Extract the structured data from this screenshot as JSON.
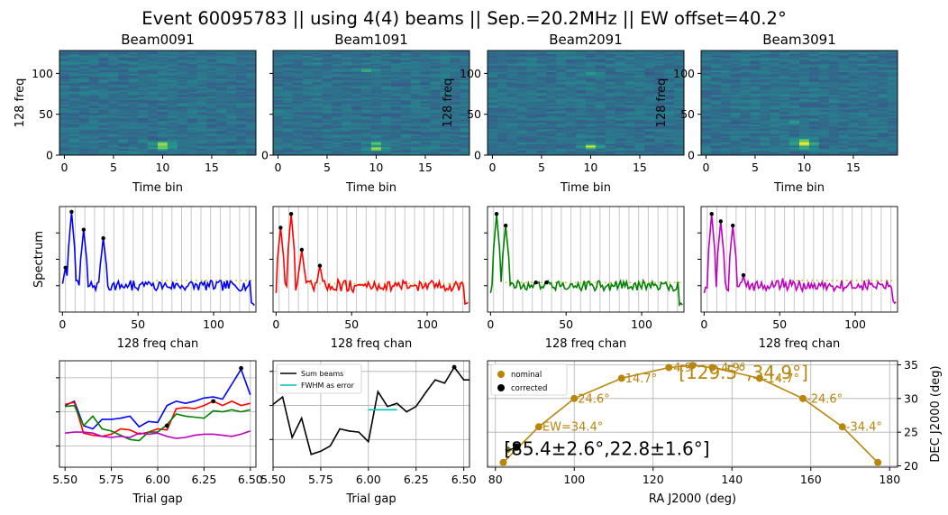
{
  "suptitle": "Event 60095783 || using 4(4) beams || Sep.=20.2MHz || EW offset=40.2°",
  "colors": {
    "beam0": "#0000ff",
    "beam1": "#ff0000",
    "beam2": "#008000",
    "beam3": "#bf00bf",
    "threshold": "#bfbf00",
    "track": "#b8860b",
    "corrected": "#000000",
    "olive": "#808000",
    "fwhm": "#00bfbf"
  },
  "chart_data": [
    {
      "type": "heatmap",
      "panels": [
        {
          "title": "Beam0091",
          "hotspots": [
            {
              "t": 10,
              "f": 14,
              "s": 1.0
            },
            {
              "t": 10,
              "f": 9,
              "s": 0.7
            }
          ]
        },
        {
          "title": "Beam1091",
          "hotspots": [
            {
              "t": 10,
              "f": 14,
              "s": 0.6
            },
            {
              "t": 10,
              "f": 8,
              "s": 0.9
            },
            {
              "t": 9,
              "f": 104,
              "s": 0.35
            }
          ]
        },
        {
          "title": "Beam2091",
          "hotspots": [
            {
              "t": 10,
              "f": 11,
              "s": 0.9
            },
            {
              "t": 10,
              "f": 100,
              "s": 0.3
            }
          ]
        },
        {
          "title": "Beam3091",
          "hotspots": [
            {
              "t": 10,
              "f": 14,
              "s": 1.0
            },
            {
              "t": 10,
              "f": 18,
              "s": 0.7
            },
            {
              "t": 10,
              "f": 9,
              "s": 0.5
            },
            {
              "t": 9,
              "f": 40,
              "s": 0.4
            }
          ]
        }
      ],
      "xlabel": "Time bin",
      "ylabel": "128 freq",
      "xlim": [
        -0.5,
        19.5
      ],
      "ylim": [
        0,
        128
      ],
      "xticks": [
        "0",
        "5",
        "10",
        "15"
      ],
      "yticks": [
        "0",
        "50",
        "100"
      ]
    },
    {
      "type": "line",
      "xlabel": "128 freq chan",
      "ylabel": "Spectrum",
      "xlim": [
        -2,
        128
      ],
      "xticks": [
        "0",
        "50",
        "100"
      ],
      "panels": [
        {
          "name": "beam0",
          "threshold": 0.3,
          "peaks": [
            [
              2,
              0.42
            ],
            [
              6,
              0.95
            ],
            [
              14,
              0.78
            ],
            [
              27,
              0.7
            ]
          ]
        },
        {
          "name": "beam1",
          "threshold": 0.27,
          "peaks": [
            [
              3,
              0.8
            ],
            [
              10,
              0.93
            ],
            [
              17,
              0.59
            ],
            [
              29,
              0.44
            ]
          ]
        },
        {
          "name": "beam2",
          "threshold": 0.28,
          "peaks": [
            [
              4,
              0.93
            ],
            [
              10,
              0.82
            ],
            [
              30,
              0.28
            ],
            [
              37,
              0.28
            ]
          ]
        },
        {
          "name": "beam3",
          "threshold": 0.3,
          "peaks": [
            [
              5,
              0.93
            ],
            [
              11,
              0.86
            ],
            [
              19,
              0.82
            ],
            [
              26,
              0.35
            ]
          ]
        }
      ]
    },
    {
      "type": "line",
      "xlabel": "Trial gap",
      "xlim": [
        5.47,
        6.53
      ],
      "xticks": [
        "5.50",
        "5.75",
        "6.00",
        "6.25",
        "6.50"
      ],
      "x": [
        5.5,
        5.55,
        5.6,
        5.65,
        5.7,
        5.75,
        5.8,
        5.85,
        5.9,
        5.95,
        6.0,
        6.05,
        6.1,
        6.15,
        6.2,
        6.25,
        6.3,
        6.35,
        6.4,
        6.45,
        6.5
      ],
      "series": [
        {
          "values": [
            0.58,
            0.62,
            0.39,
            0.36,
            0.45,
            0.45,
            0.46,
            0.48,
            0.38,
            0.43,
            0.42,
            0.58,
            0.62,
            0.6,
            0.62,
            0.65,
            0.66,
            0.64,
            0.78,
            0.92,
            0.68
          ]
        },
        {
          "values": [
            0.59,
            0.61,
            0.32,
            0.3,
            0.29,
            0.31,
            0.36,
            0.35,
            0.31,
            0.33,
            0.36,
            0.35,
            0.55,
            0.56,
            0.55,
            0.58,
            0.62,
            0.58,
            0.62,
            0.58,
            0.6
          ]
        },
        {
          "values": [
            0.57,
            0.58,
            0.39,
            0.48,
            0.36,
            0.34,
            0.3,
            0.26,
            0.25,
            0.33,
            0.33,
            0.4,
            0.5,
            0.48,
            0.47,
            0.46,
            0.53,
            0.52,
            0.54,
            0.52,
            0.54
          ]
        },
        {
          "values": [
            0.32,
            0.33,
            0.33,
            0.32,
            0.29,
            0.28,
            0.29,
            0.28,
            0.32,
            0.31,
            0.32,
            0.29,
            0.27,
            0.28,
            0.3,
            0.31,
            0.31,
            0.3,
            0.29,
            0.31,
            0.34
          ]
        }
      ],
      "markers": [
        [
          6.05,
          0.39
        ],
        [
          6.3,
          0.62
        ],
        [
          6.45,
          0.93
        ]
      ]
    },
    {
      "type": "line",
      "xlabel": "Trial gap",
      "xlim": [
        5.5,
        6.53
      ],
      "xticks": [
        "5.50",
        "5.75",
        "6.00",
        "6.25",
        "6.50"
      ],
      "legend": [
        "Sum beams",
        "FWHM as error"
      ],
      "x": [
        5.5,
        5.55,
        5.6,
        5.65,
        5.7,
        5.75,
        5.8,
        5.85,
        5.9,
        5.95,
        6.0,
        6.05,
        6.1,
        6.15,
        6.2,
        6.25,
        6.3,
        6.35,
        6.4,
        6.45,
        6.5,
        6.53
      ],
      "series": [
        {
          "name": "Sum beams",
          "values": [
            0.59,
            0.66,
            0.28,
            0.46,
            0.12,
            0.15,
            0.2,
            0.36,
            0.34,
            0.33,
            0.24,
            0.71,
            0.57,
            0.6,
            0.52,
            0.57,
            0.7,
            0.82,
            0.79,
            0.94,
            0.82,
            0.82
          ]
        }
      ],
      "fwhm": [
        6.0,
        6.15,
        0.54
      ],
      "markers": [
        [
          6.45,
          0.94
        ]
      ]
    },
    {
      "type": "scatter",
      "xlabel": "RA J2000 (deg)",
      "ylabel": "DEC J2000 (deg)",
      "xlim": [
        78,
        182
      ],
      "ylim": [
        19.8,
        35.6
      ],
      "xticks": [
        "80",
        "100",
        "120",
        "140",
        "160",
        "180"
      ],
      "yticks": [
        "20",
        "25",
        "30",
        "35"
      ],
      "legend": [
        "nominal",
        "corrected"
      ],
      "nominal": [
        [
          82,
          20.5
        ],
        [
          91,
          25.8
        ],
        [
          100,
          30.0
        ],
        [
          112,
          33.0
        ],
        [
          124,
          34.6
        ],
        [
          130,
          34.9
        ],
        [
          135,
          34.6
        ],
        [
          147,
          33.0
        ],
        [
          158,
          30.0
        ],
        [
          168,
          25.8
        ],
        [
          177,
          20.5
        ]
      ],
      "corrected": [
        [
          83.3,
          22.4
        ],
        [
          85.4,
          22.8
        ]
      ],
      "offset_labels": [
        "EW=34.4°",
        "24.6°",
        "14.7°",
        "4.9°",
        "-4.9°",
        "-14.7°",
        "-24.6°",
        "-34.4°"
      ],
      "annotations": [
        "[129.5°,34.9°]",
        "[85.4±2.6°,22.8±1.6°]"
      ]
    }
  ]
}
